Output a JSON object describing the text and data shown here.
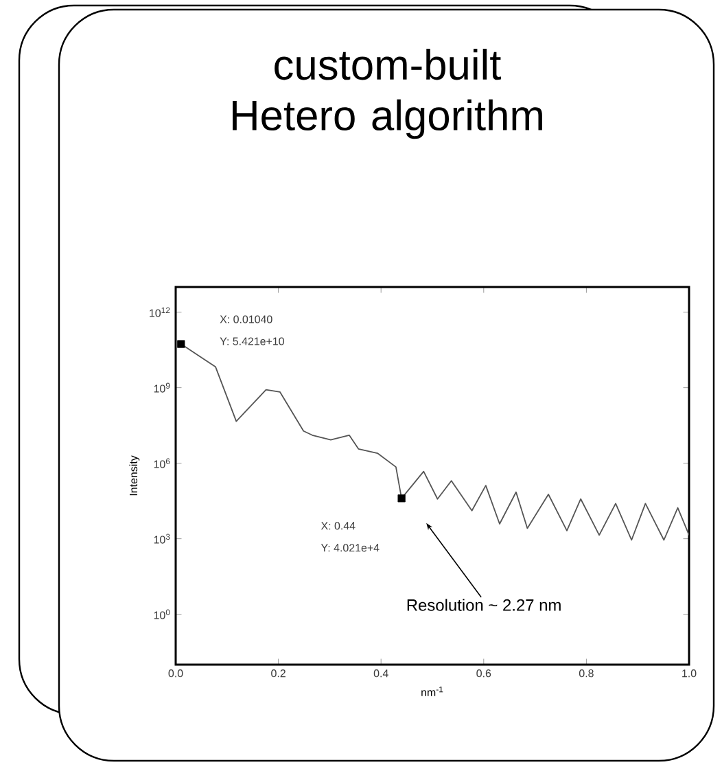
{
  "chart_data": {
    "type": "line",
    "title": "custom-built Hetero algorithm",
    "xlabel": "nm$^{-1}$",
    "ylabel": "Intensity",
    "log": "y",
    "xlim": [
      0,
      1
    ],
    "ylim": [
      0.01,
      10000000000000.0
    ],
    "xticks": [
      {
        "value": 0,
        "label": "0.0"
      },
      {
        "value": 0.2,
        "label": "0.2"
      },
      {
        "value": 0.4,
        "label": "0.4"
      },
      {
        "value": 0.6,
        "label": "0.6"
      },
      {
        "value": 0.8,
        "label": "0.8"
      },
      {
        "value": 1,
        "label": "1.0"
      }
    ],
    "yticks": [
      {
        "value": 1,
        "label": "10$^{0}$"
      },
      {
        "value": 1000,
        "label": "10$^{3}$"
      },
      {
        "value": 1000000.0,
        "label": "10$^{6}$"
      },
      {
        "value": 1000000000.0,
        "label": "10$^{9}$"
      },
      {
        "value": 1000000000000.0,
        "label": "10$^{12}$"
      }
    ],
    "series": [
      {
        "color": "#555555",
        "x": [
          0.0104,
          0.0775,
          0.118,
          0.176,
          0.203,
          0.249,
          0.266,
          0.302,
          0.338,
          0.356,
          0.393,
          0.429,
          0.44,
          0.483,
          0.51,
          0.537,
          0.577,
          0.604,
          0.631,
          0.663,
          0.685,
          0.726,
          0.762,
          0.789,
          0.825,
          0.857,
          0.888,
          0.915,
          0.951,
          0.978,
          1.0
        ],
        "values": [
          54210000000.0,
          6800000000.0,
          46000000.0,
          830000000.0,
          680000000.0,
          19000000.0,
          13000000.0,
          8500000.0,
          13000000.0,
          3700000.0,
          2500000.0,
          710000.0,
          40210.0,
          470000.0,
          38000.0,
          200000.0,
          13000.0,
          130000.0,
          3900.0,
          71000.0,
          2600.0,
          58000.0,
          2100.0,
          38000.0,
          1400.0,
          25000.0,
          890.0,
          25000.0,
          890.0,
          17000.0,
          1400.0
        ]
      },
      {
        "type": "scatter",
        "marker": "square",
        "color": "#000000",
        "x": [
          0.0104,
          0.44
        ],
        "values": [
          54210000000.0,
          40210.0
        ]
      }
    ],
    "annotations": [
      "X: 0.01040",
      "Y: 5.421e+10",
      "X: 0.44",
      "Y: 4.021e+4",
      "Resolution ~ 2.27 nm"
    ]
  }
}
